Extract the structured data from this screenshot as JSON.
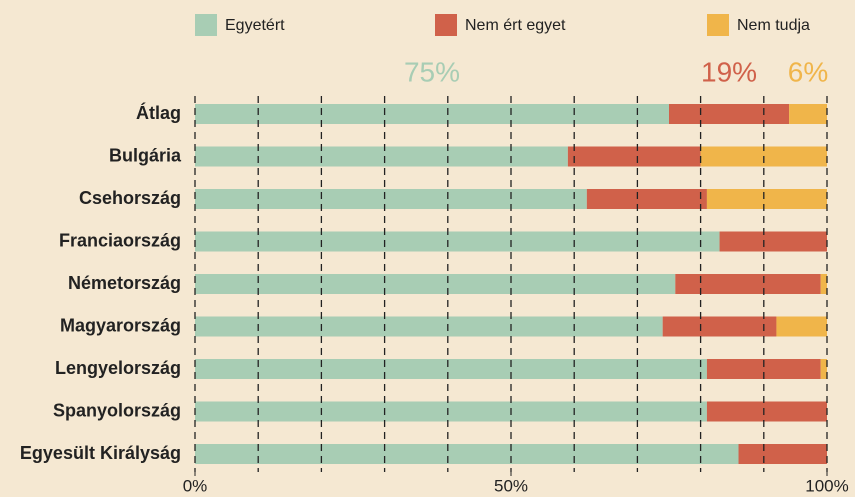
{
  "chart_data": {
    "type": "stacked-barh",
    "orientation": "horizontal",
    "categories": [
      "Átlag",
      "Bulgária",
      "Csehország",
      "Franciaország",
      "Németország",
      "Magyarország",
      "Lengyelország",
      "Spanyolország",
      "Egyesült Királyság"
    ],
    "series": [
      {
        "name": "Egyetért",
        "color": "#a8cdb4",
        "values": [
          75,
          59,
          62,
          83,
          76,
          74,
          81,
          81,
          86
        ],
        "value_labels": [
          "75%",
          null,
          null,
          null,
          null,
          null,
          null,
          null,
          null
        ]
      },
      {
        "name": "Nem ért egyet",
        "color": "#d0614a",
        "values": [
          19,
          21,
          19,
          17,
          23,
          18,
          18,
          19,
          14
        ],
        "value_labels": [
          "19%",
          null,
          null,
          null,
          null,
          null,
          null,
          null,
          null
        ]
      },
      {
        "name": "Nem tudja",
        "color": "#f0b54a",
        "values": [
          6,
          20,
          19,
          0,
          1,
          8,
          1,
          0,
          0
        ],
        "value_labels": [
          "6%",
          null,
          null,
          null,
          null,
          null,
          null,
          null,
          null
        ]
      }
    ],
    "xlim": [
      0,
      100
    ],
    "xticks": [
      {
        "value": 0,
        "label": "0%"
      },
      {
        "value": 50,
        "label": "50%"
      },
      {
        "value": 100,
        "label": "100%"
      }
    ],
    "grid_xticks": [
      0,
      10,
      20,
      30,
      40,
      50,
      60,
      70,
      80,
      90,
      100
    ],
    "grid": true,
    "legend": "top"
  }
}
